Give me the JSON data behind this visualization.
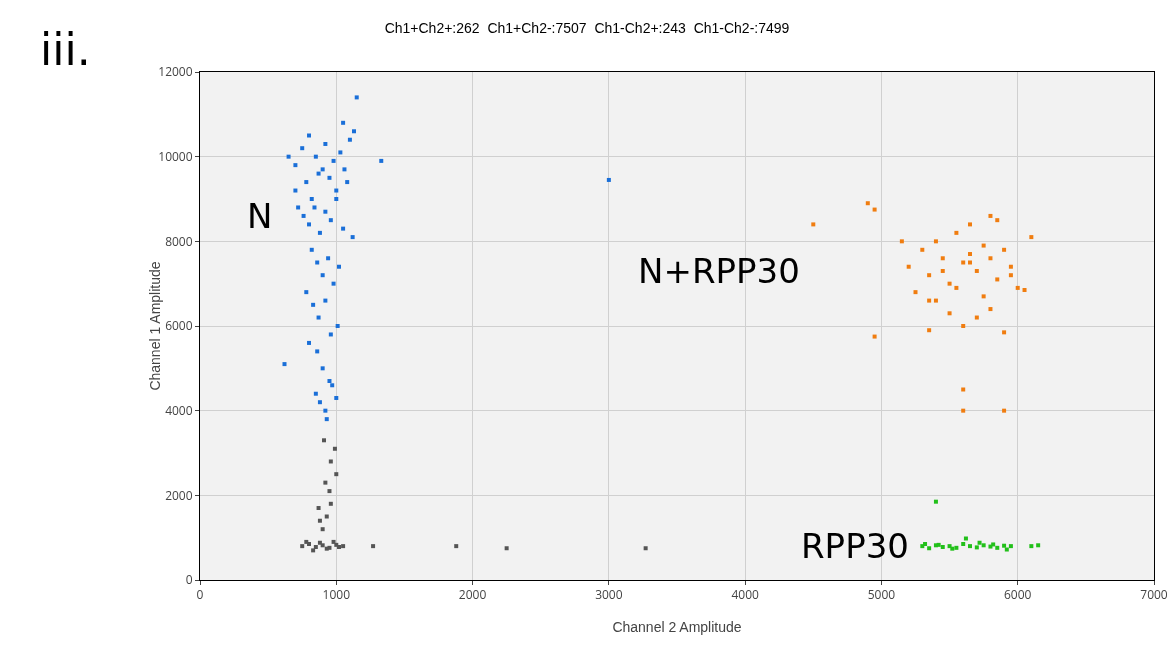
{
  "chart_data": {
    "type": "scatter",
    "title": "Ch1+Ch2+:262  Ch1+Ch2-:7507  Ch1-Ch2+:243  Ch1-Ch2-:7499",
    "xlabel": "Channel 2 Amplitude",
    "ylabel": "Channel 1 Amplitude",
    "xlim": [
      0,
      7000
    ],
    "ylim": [
      0,
      12000
    ],
    "xticks": [
      0,
      1000,
      2000,
      3000,
      4000,
      5000,
      6000,
      7000
    ],
    "yticks": [
      0,
      2000,
      4000,
      6000,
      8000,
      10000,
      12000
    ],
    "grid": true,
    "legend": false,
    "marker": "square",
    "series": [
      {
        "name": "N",
        "color": "#1a6fd8",
        "x": [
          700,
          750,
          780,
          800,
          820,
          850,
          870,
          900,
          920,
          950,
          980,
          1000,
          1030,
          1060,
          1100,
          1130,
          720,
          760,
          800,
          840,
          880,
          920,
          960,
          1000,
          1050,
          1080,
          650,
          700,
          820,
          860,
          900,
          940,
          980,
          1020,
          780,
          830,
          870,
          920,
          960,
          1010,
          860,
          900,
          950,
          800,
          850,
          880,
          920,
          970,
          1000,
          930,
          3000,
          1330,
          1150,
          620,
          1050,
          1120
        ],
        "values": [
          9800,
          10200,
          9400,
          10500,
          9000,
          10000,
          9600,
          9700,
          10300,
          9500,
          9900,
          9200,
          10100,
          9700,
          10400,
          10600,
          8800,
          8600,
          8400,
          8800,
          8200,
          8700,
          8500,
          9000,
          8300,
          9400,
          10000,
          9200,
          7800,
          7500,
          7200,
          7600,
          7000,
          7400,
          6800,
          6500,
          6200,
          6600,
          5800,
          6000,
          5400,
          5000,
          4700,
          5600,
          4400,
          4200,
          4000,
          4600,
          4300,
          3800,
          9450,
          9900,
          11400,
          5100,
          10800,
          8100
        ]
      },
      {
        "name": "N+RPP30",
        "color": "#f07d10",
        "x": [
          5200,
          5300,
          5350,
          5400,
          5450,
          5500,
          5550,
          5600,
          5650,
          5700,
          5750,
          5800,
          5850,
          5900,
          5950,
          6000,
          6100,
          5250,
          5350,
          5450,
          5550,
          5650,
          5750,
          5850,
          5950,
          5500,
          5600,
          5700,
          5800,
          5400,
          5650,
          5900,
          4500,
          4900,
          4950,
          4950,
          5600,
          5600,
          5900,
          5150,
          6050,
          5350,
          5800
        ],
        "values": [
          7400,
          7800,
          7200,
          8000,
          7600,
          7000,
          8200,
          7500,
          7700,
          7300,
          7900,
          7600,
          7100,
          7800,
          7400,
          6900,
          8100,
          6800,
          6600,
          7300,
          6900,
          8400,
          6700,
          8500,
          7200,
          6300,
          6000,
          6200,
          6400,
          6600,
          7500,
          5850,
          8400,
          8900,
          5750,
          8750,
          4500,
          4000,
          4000,
          8000,
          6850,
          5900,
          8600
        ]
      },
      {
        "name": "RPP30",
        "color": "#22c01a",
        "x": [
          5300,
          5350,
          5400,
          5450,
          5500,
          5550,
          5600,
          5650,
          5700,
          5750,
          5800,
          5850,
          5900,
          5950,
          5320,
          5420,
          5520,
          5620,
          5720,
          5820,
          5920,
          6100,
          6150,
          5400
        ],
        "values": [
          800,
          750,
          820,
          780,
          800,
          760,
          850,
          800,
          770,
          820,
          790,
          760,
          810,
          800,
          850,
          830,
          740,
          980,
          880,
          840,
          720,
          800,
          820,
          1850
        ]
      },
      {
        "color": "#555555",
        "x": [
          750,
          800,
          850,
          900,
          950,
          1000,
          1050,
          780,
          830,
          880,
          930,
          980,
          1020,
          900,
          930,
          960,
          880,
          950,
          1000,
          920,
          870,
          960,
          990,
          910,
          1270,
          1880,
          2250,
          3270
        ],
        "values": [
          800,
          850,
          780,
          820,
          760,
          830,
          800,
          900,
          700,
          880,
          740,
          900,
          780,
          1200,
          1500,
          1800,
          1400,
          2100,
          2500,
          2300,
          1700,
          2800,
          3100,
          3300,
          800,
          800,
          750,
          750
        ]
      }
    ],
    "annotations": [
      "iii."
    ]
  }
}
